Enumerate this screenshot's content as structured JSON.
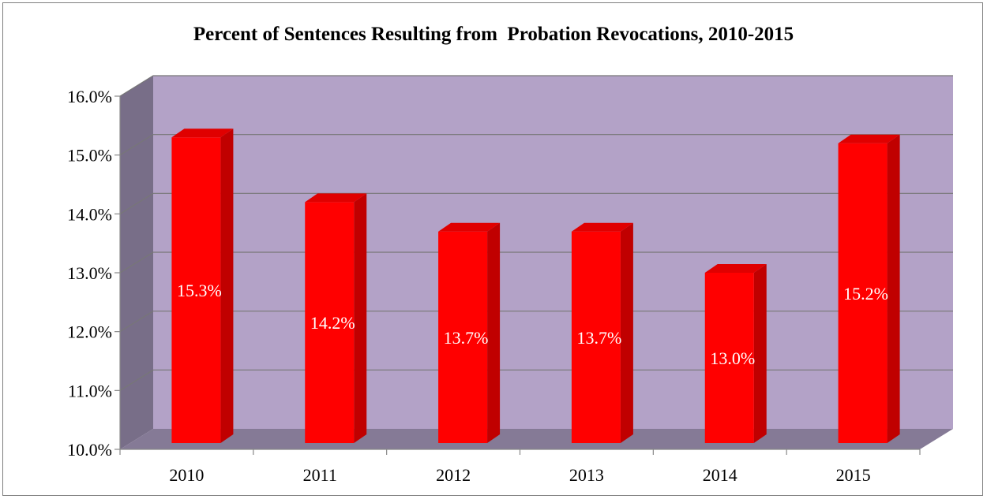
{
  "chart_data": {
    "type": "bar",
    "title": "Percent of Sentences Resulting from  Probation Revocations, 2010-2015",
    "categories": [
      "2010",
      "2011",
      "2012",
      "2013",
      "2014",
      "2015"
    ],
    "values": [
      15.3,
      14.2,
      13.7,
      13.7,
      13.0,
      15.2
    ],
    "data_labels": [
      "15.3%",
      "14.2%",
      "13.7%",
      "13.7%",
      "13.0%",
      "15.2%"
    ],
    "ylim": [
      10,
      16
    ],
    "yticks": [
      "10.0%",
      "11.0%",
      "12.0%",
      "13.0%",
      "14.0%",
      "15.0%",
      "16.0%"
    ],
    "xlabel": "",
    "ylabel": "",
    "grid": true,
    "legend": "none",
    "colors": {
      "bar_front": "#ff0000",
      "bar_side": "#c00000",
      "bar_top": "#e00000",
      "back_wall": "#b3a2c7",
      "side_wall": "#786e88",
      "floor": "#857a96",
      "gridline": "#777777",
      "data_label": "#ffffff"
    }
  }
}
